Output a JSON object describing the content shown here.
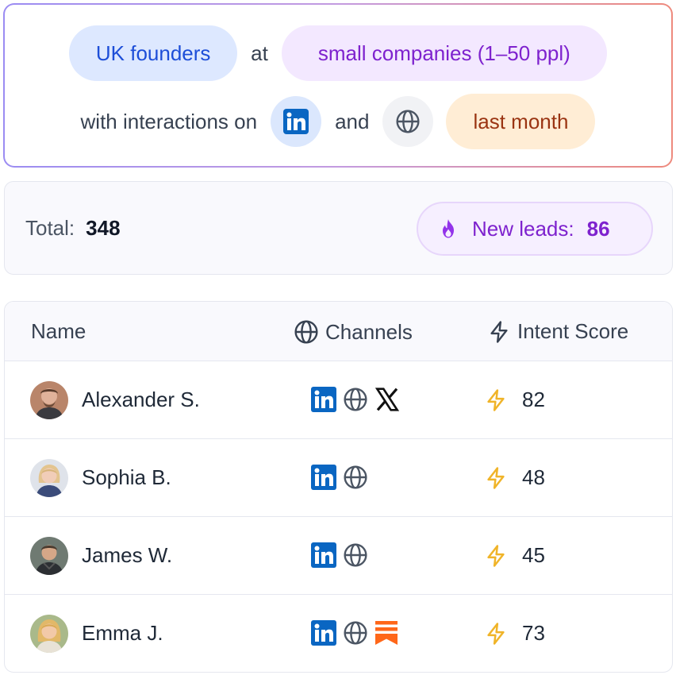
{
  "query": {
    "segment": "UK founders",
    "connector_at": "at",
    "company_size": "small companies (1–50 ppl)",
    "connector_interactions": "with interactions on",
    "connector_and": "and",
    "timeframe": "last month",
    "channel_icons": [
      "linkedin-icon",
      "globe-icon"
    ]
  },
  "summary": {
    "total_label": "Total:",
    "total_value": "348",
    "new_leads_label": "New leads:",
    "new_leads_value": "86"
  },
  "table": {
    "headers": {
      "name": "Name",
      "channels": "Channels",
      "intent": "Intent Score"
    },
    "rows": [
      {
        "name": "Alexander S.",
        "channels": [
          "linkedin-icon",
          "globe-icon",
          "x-icon"
        ],
        "score": "82"
      },
      {
        "name": "Sophia B.",
        "channels": [
          "linkedin-icon",
          "globe-icon"
        ],
        "score": "48"
      },
      {
        "name": "James W.",
        "channels": [
          "linkedin-icon",
          "globe-icon"
        ],
        "score": "45"
      },
      {
        "name": "Emma J.",
        "channels": [
          "linkedin-icon",
          "globe-icon",
          "substack-icon"
        ],
        "score": "73"
      }
    ]
  },
  "colors": {
    "linkedin": "#0a66c2",
    "substack": "#ff6719",
    "bolt": "#f0b429",
    "new_leads": "#7e22ce"
  }
}
